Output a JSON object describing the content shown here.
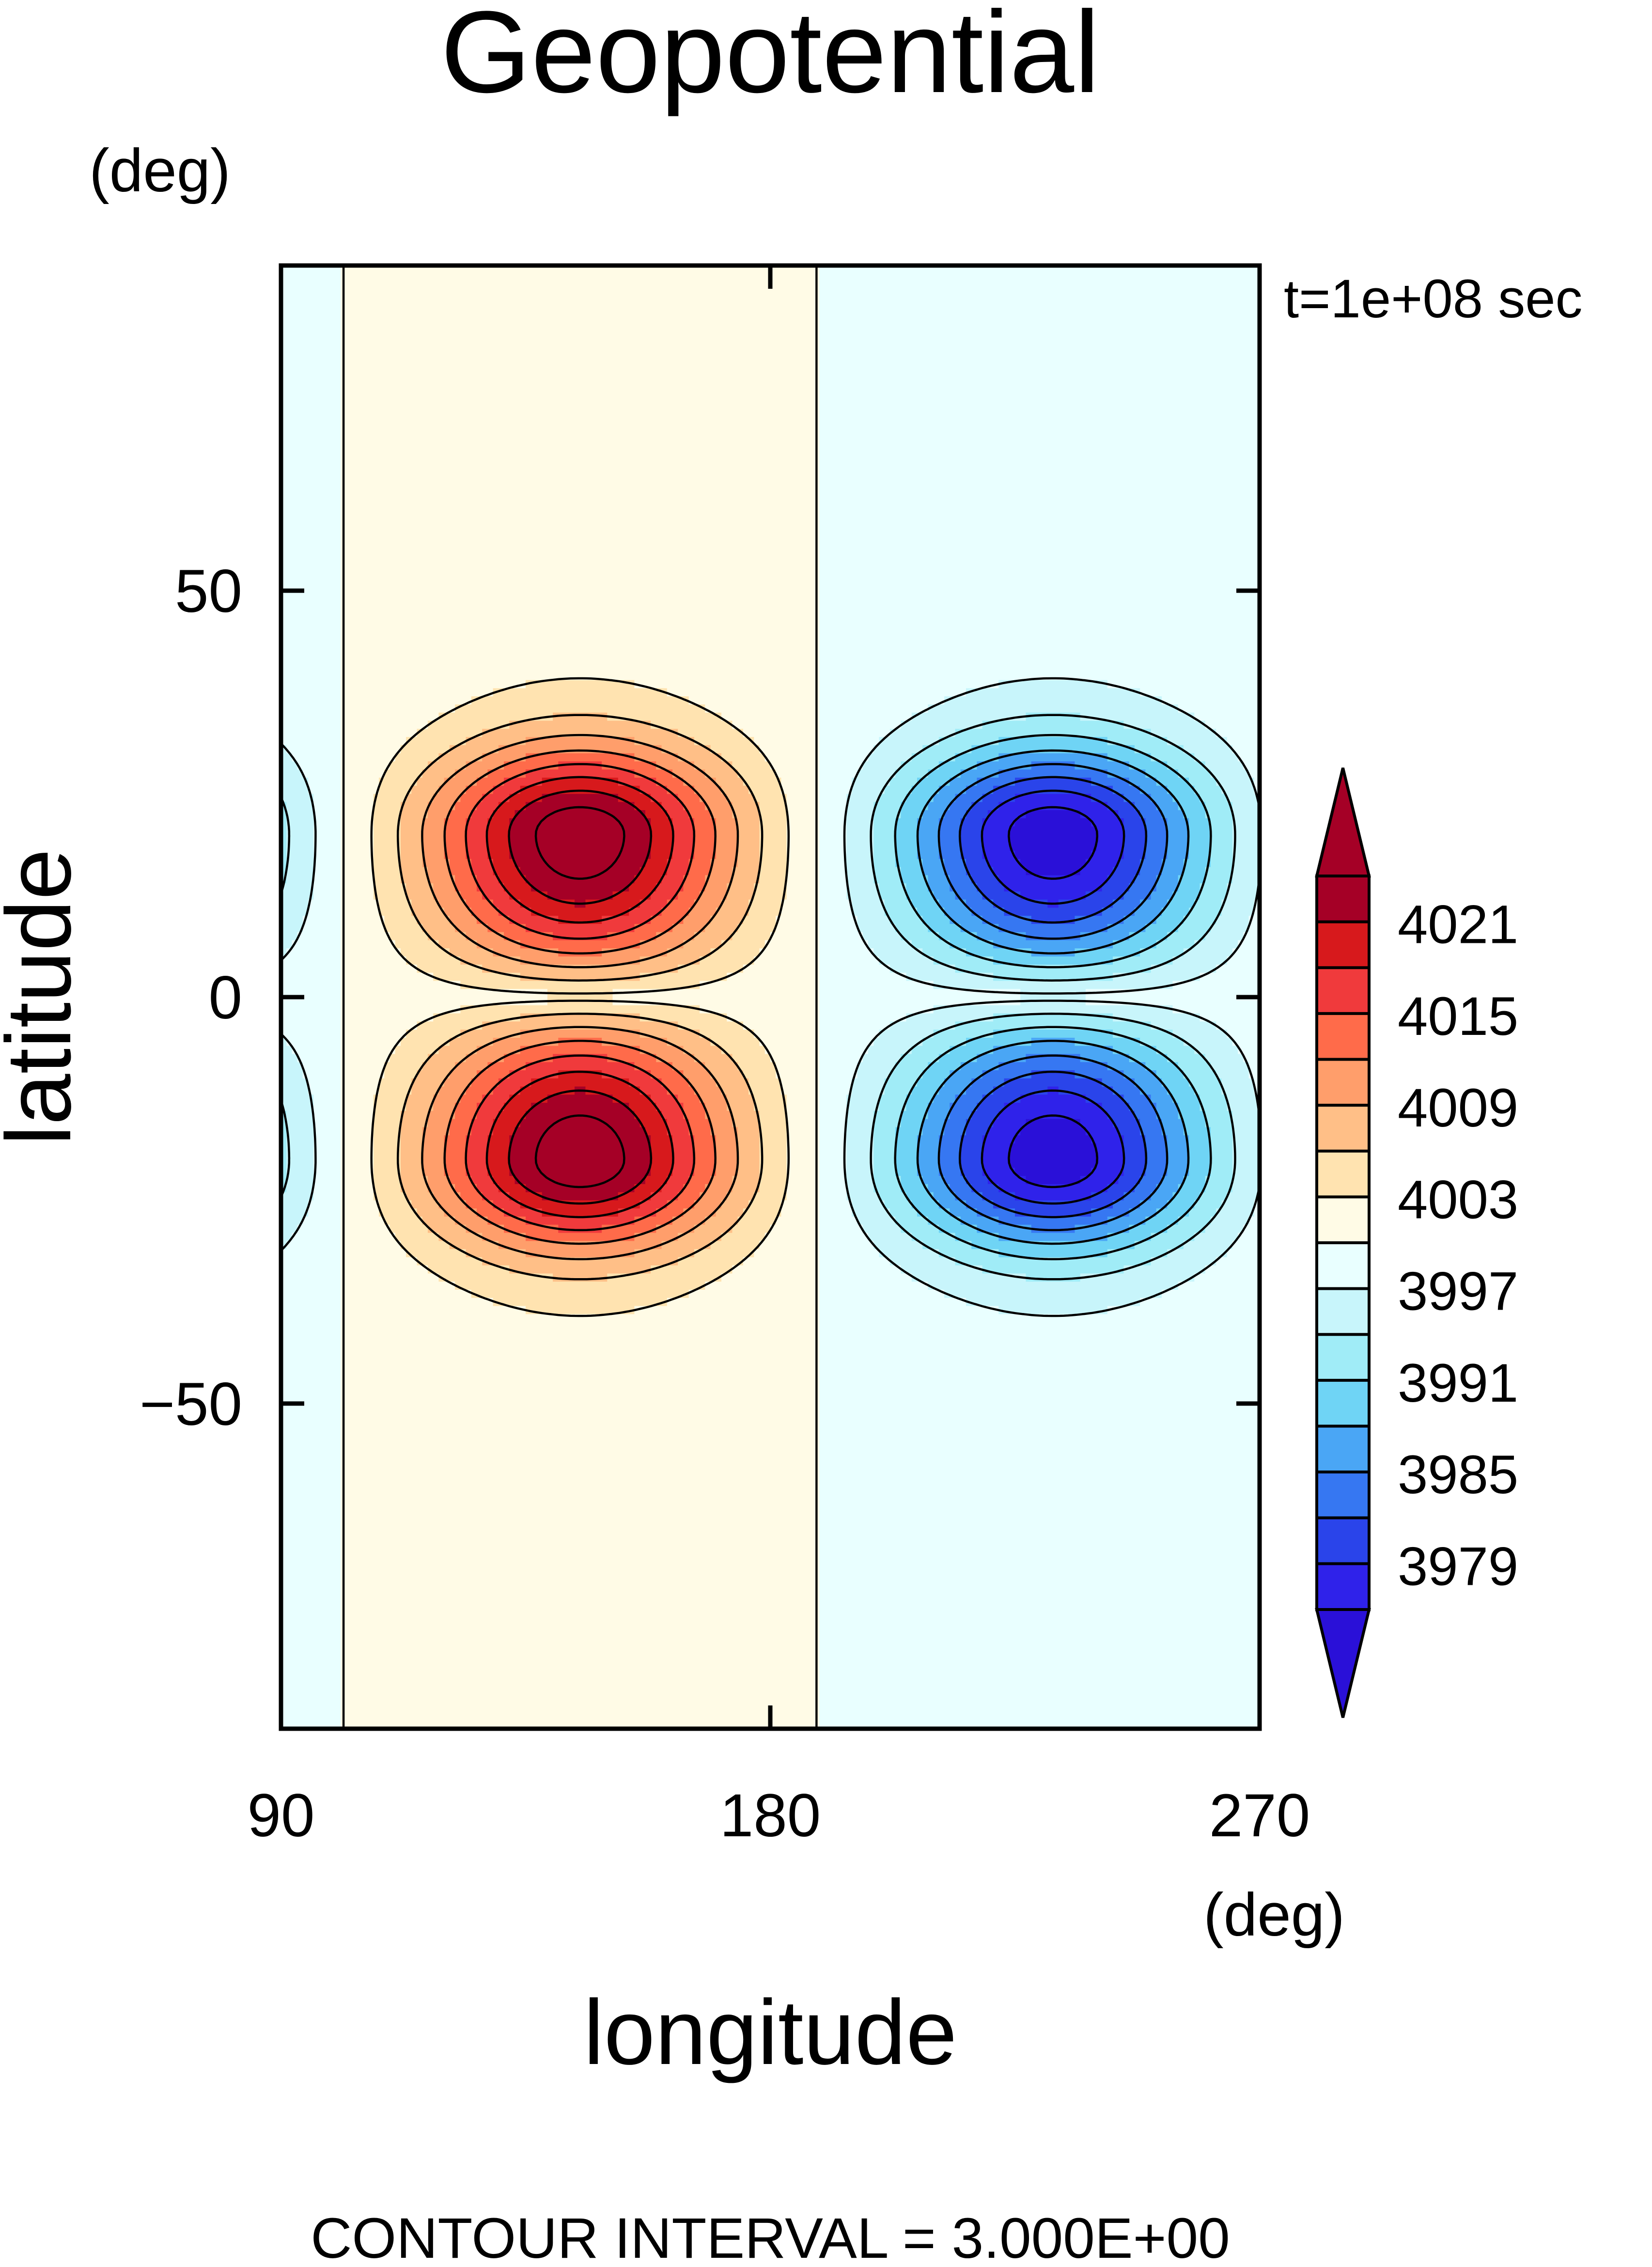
{
  "chart_data": {
    "type": "heatmap",
    "title": "Geopotential",
    "time_label": "t=1e+08 sec",
    "xlabel": "longitude",
    "ylabel": "latitude",
    "xunit": "(deg)",
    "yunit": "(deg)",
    "xlim": [
      90,
      270
    ],
    "ylim": [
      -90,
      90
    ],
    "xticks": [
      90,
      180,
      270
    ],
    "yticks": [
      50,
      0,
      -50
    ],
    "xtick_labels": [
      "90",
      "180",
      "270"
    ],
    "ytick_labels": [
      "50",
      "0",
      "−50"
    ],
    "footer": "CONTOUR INTERVAL = 3.000E+00",
    "contour_interval": 3,
    "field": {
      "base": 4000,
      "highs": [
        {
          "lon": 145,
          "lat": 20,
          "value": 4024
        },
        {
          "lon": 145,
          "lat": -20,
          "value": 4024
        }
      ],
      "lows": [
        {
          "lon": 232,
          "lat": 20,
          "value": 3976
        },
        {
          "lon": 232,
          "lat": -20,
          "value": 3976
        }
      ]
    },
    "colorbar": {
      "labels": [
        "4021",
        "4015",
        "4009",
        "4003",
        "3997",
        "3991",
        "3985",
        "3979"
      ],
      "levels": [
        4024,
        4021,
        4018,
        4015,
        4012,
        4009,
        4006,
        4003,
        4000,
        3997,
        3994,
        3991,
        3988,
        3985,
        3982,
        3979,
        3976
      ],
      "colors": [
        "#a50026",
        "#d7191c",
        "#f03a3c",
        "#ff6b4a",
        "#ff9e6b",
        "#ffbf87",
        "#ffe3b0",
        "#fffbe6",
        "#e9ffff",
        "#c8f5fb",
        "#a0ecf7",
        "#6fd4f5",
        "#4aa6f5",
        "#3677f2",
        "#2a44ea",
        "#2f22ea"
      ],
      "over_color": "#a50026",
      "under_color": "#2a10d8"
    }
  }
}
